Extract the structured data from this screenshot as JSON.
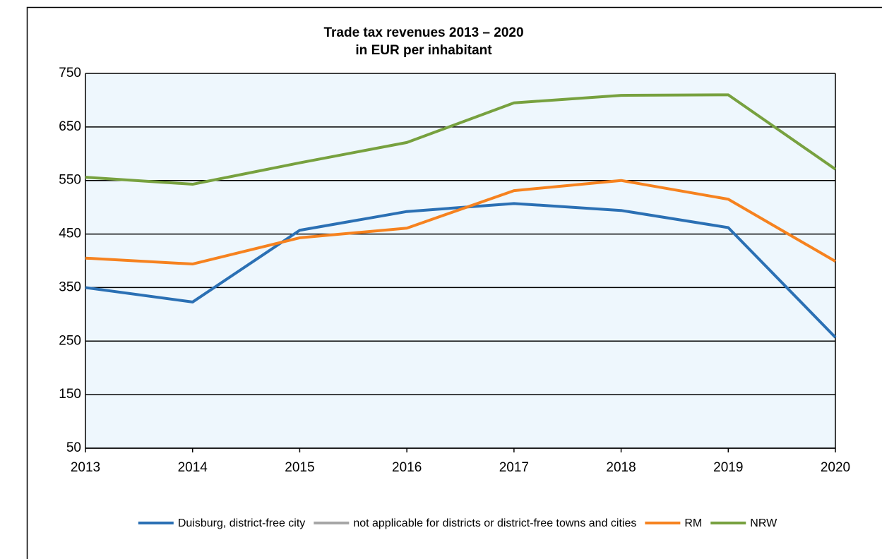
{
  "chart_data": {
    "type": "line",
    "title": "Trade tax revenues  2013 – 2020",
    "subtitle": "in EUR per inhabitant",
    "categories": [
      "2013",
      "2014",
      "2015",
      "2016",
      "2017",
      "2018",
      "2019",
      "2020"
    ],
    "series": [
      {
        "name": "Duisburg, district-free city",
        "color": "#2b70b4",
        "values": [
          350,
          323,
          457,
          492,
          507,
          494,
          462,
          257
        ]
      },
      {
        "name": "not applicable for districts or district-free towns and cities",
        "color": "#a6a6a6",
        "values": [
          null,
          null,
          null,
          null,
          null,
          null,
          null,
          null
        ]
      },
      {
        "name": "RM",
        "color": "#f6821f",
        "values": [
          405,
          394,
          443,
          461,
          531,
          550,
          515,
          399
        ]
      },
      {
        "name": "NRW",
        "color": "#77a13f",
        "values": [
          556,
          543,
          583,
          621,
          695,
          709,
          710,
          571
        ]
      }
    ],
    "ylim": [
      50,
      750
    ],
    "yticks": [
      50,
      150,
      250,
      350,
      450,
      550,
      650,
      750
    ],
    "grid": true,
    "legend": "bottom"
  }
}
